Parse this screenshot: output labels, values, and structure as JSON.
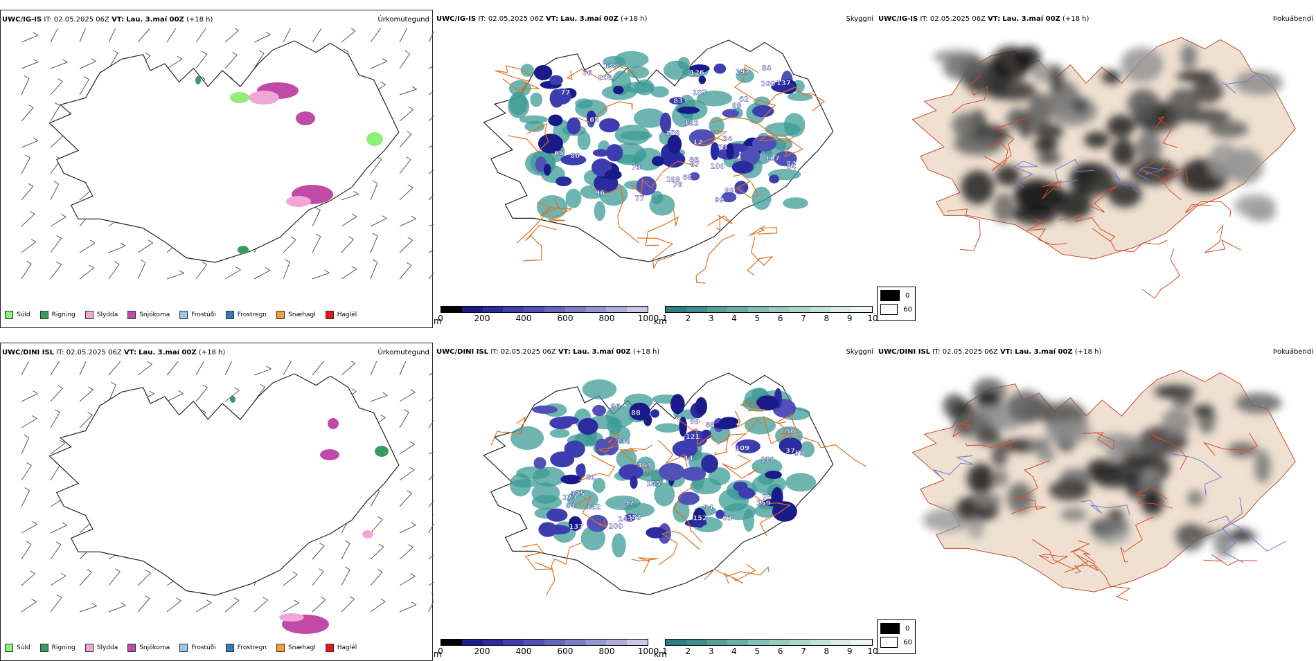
{
  "rows": [
    {
      "model": "UWC/IG-IS",
      "it_label": "IT:",
      "it_value": "02.05.2025 06Z",
      "vt_label": "VT:",
      "vt_value": "Lau. 3.maí 00Z",
      "lead": "(+18 h)",
      "fields": {
        "precip_type": "Úrkomutegund",
        "visibility": "Skyggni",
        "fog": "Þokuábendi"
      },
      "precip_labels": [
        {
          "v": "99"
        },
        {
          "v": "122"
        },
        {
          "v": "100"
        },
        {
          "v": "84"
        },
        {
          "v": "73"
        },
        {
          "v": "199"
        },
        {
          "v": "65"
        },
        {
          "v": "87"
        },
        {
          "v": "84"
        },
        {
          "v": "98"
        },
        {
          "v": "86"
        },
        {
          "v": "80"
        },
        {
          "v": "54"
        },
        {
          "v": "99"
        },
        {
          "v": "126"
        },
        {
          "v": "66"
        },
        {
          "v": "96"
        },
        {
          "v": "12"
        },
        {
          "v": "73"
        },
        {
          "v": "76"
        },
        {
          "v": "158"
        },
        {
          "v": "127"
        },
        {
          "v": "137"
        },
        {
          "v": "107"
        },
        {
          "v": "65"
        },
        {
          "v": "197"
        },
        {
          "v": "138"
        },
        {
          "v": "68"
        },
        {
          "v": "77"
        },
        {
          "v": "62"
        },
        {
          "v": "34"
        },
        {
          "v": "77"
        },
        {
          "v": "83"
        },
        {
          "v": "100"
        },
        {
          "v": "208"
        }
      ]
    },
    {
      "model": "UWC/DINI ISL",
      "it_label": "IT:",
      "it_value": "02.05.2025 06Z",
      "vt_label": "VT:",
      "vt_value": "Lau. 3.maí 00Z",
      "lead": "(+18 h)",
      "fields": {
        "precip_type": "Úrkomutegund",
        "visibility": "Skyggni",
        "fog": "Þokuábendi"
      },
      "precip_labels": [
        {
          "v": "75"
        },
        {
          "v": "99"
        },
        {
          "v": "122"
        },
        {
          "v": "56"
        },
        {
          "v": "155"
        },
        {
          "v": "383"
        },
        {
          "v": "152"
        },
        {
          "v": "121"
        },
        {
          "v": "200"
        },
        {
          "v": "137"
        },
        {
          "v": "363"
        },
        {
          "v": "138"
        },
        {
          "v": "159"
        },
        {
          "v": "81"
        },
        {
          "v": "109"
        },
        {
          "v": "125"
        },
        {
          "v": "143"
        },
        {
          "v": "59"
        },
        {
          "v": "96"
        },
        {
          "v": "173"
        },
        {
          "v": "97"
        },
        {
          "v": "88"
        },
        {
          "v": "112"
        },
        {
          "v": "84"
        },
        {
          "v": "44"
        },
        {
          "v": "37"
        },
        {
          "v": "94"
        },
        {
          "v": "88"
        },
        {
          "v": "63"
        }
      ]
    }
  ],
  "precip_type_legend": [
    {
      "label": "Súld",
      "color": "#90ee7a"
    },
    {
      "label": "Rigning",
      "color": "#3c9a5e"
    },
    {
      "label": "Slydda",
      "color": "#f0a6d6"
    },
    {
      "label": "Snjókoma",
      "color": "#c04aa6"
    },
    {
      "label": "Frostúði",
      "color": "#9cc4f0"
    },
    {
      "label": "Frostregn",
      "color": "#3c78c0"
    },
    {
      "label": "Snæhagl",
      "color": "#f0a030"
    },
    {
      "label": "Haglél",
      "color": "#e01818"
    }
  ],
  "cloud_base": {
    "unit": "m",
    "ticks": [
      "0",
      "200",
      "400",
      "600",
      "800",
      "1000"
    ],
    "colors": [
      "#000000",
      "#1a1a8a",
      "#2b2ba0",
      "#3d3db0",
      "#5050b8",
      "#6666c0",
      "#7d7dc8",
      "#9595d2",
      "#aeaedc",
      "#c8c8e8"
    ]
  },
  "visibility_bar": {
    "unit": "km",
    "ticks": [
      "1",
      "2",
      "3",
      "4",
      "5",
      "6",
      "7",
      "8",
      "9",
      "10"
    ],
    "colors": [
      "#2e7f7f",
      "#3f8e8c",
      "#55a09a",
      "#6bb0a8",
      "#82bfb5",
      "#98ccc2",
      "#aed7cf",
      "#c3e2dc",
      "#d8ece8",
      "#eef7f5"
    ]
  },
  "fog_key": [
    {
      "label": "0",
      "color": "#000000"
    },
    {
      "label": "60",
      "color": "#ffffff"
    }
  ],
  "colors": {
    "coast": "#222222",
    "roads": "#e07020",
    "rivers": "#6a7ad8",
    "land": "#efe0d2",
    "veg": "#3d9b95"
  }
}
